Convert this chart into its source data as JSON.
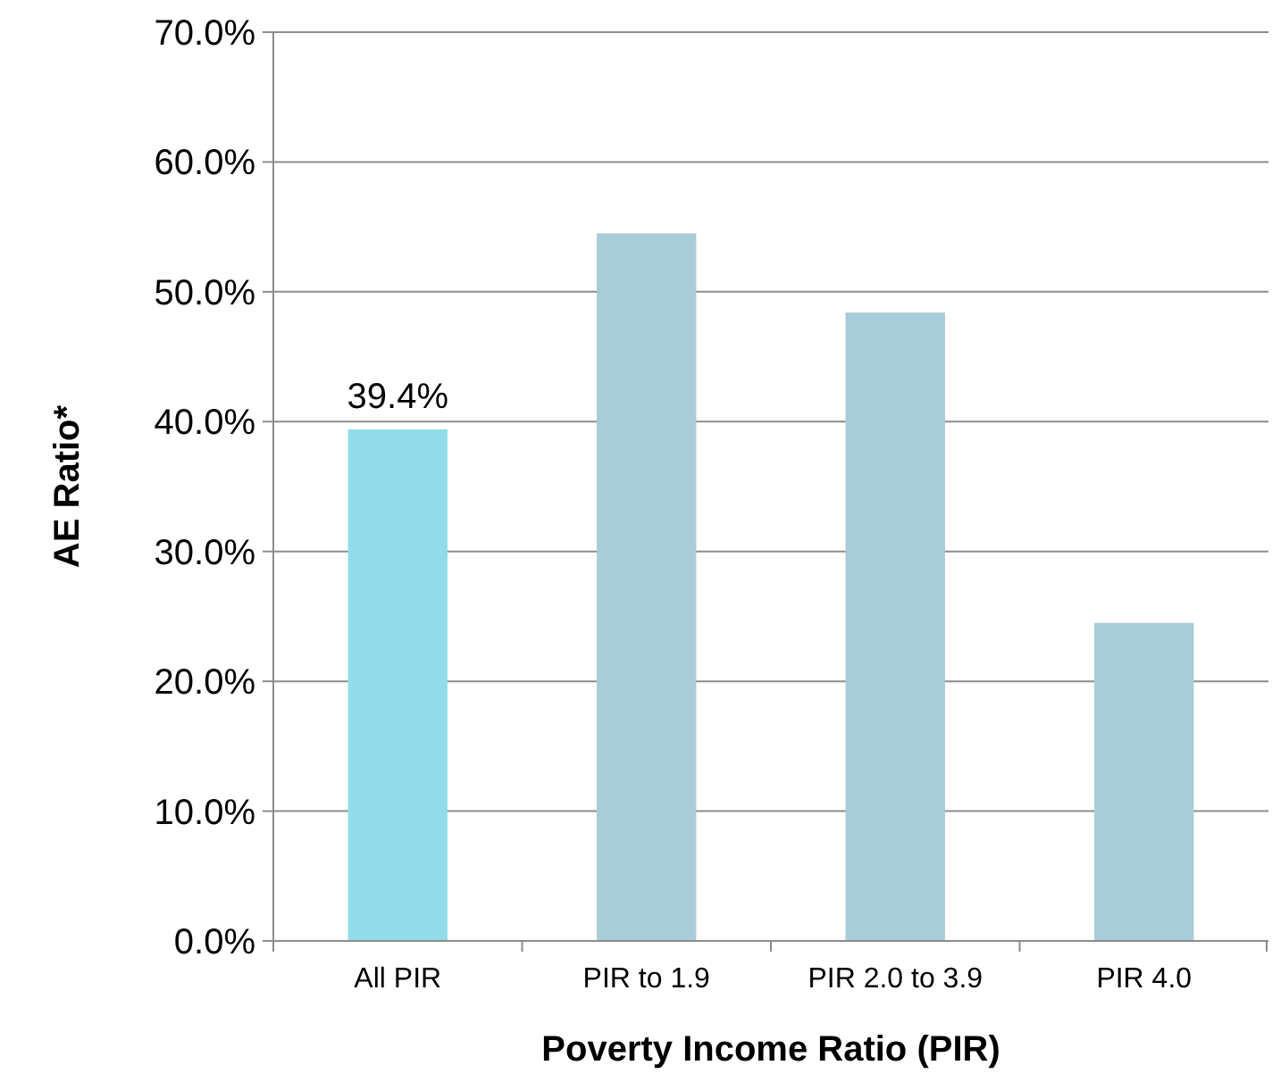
{
  "chart_data": {
    "type": "bar",
    "xlabel": "Poverty Income Ratio (PIR)",
    "ylabel": "AE Ratio*",
    "categories": [
      "All PIR",
      "PIR to 1.9",
      "PIR 2.0 to 3.9",
      "PIR 4.0"
    ],
    "values": [
      39.4,
      54.5,
      48.4,
      24.5
    ],
    "colors": [
      "#92dcea",
      "#a9cdd8",
      "#a9cdd8",
      "#a9cdd8"
    ],
    "value_labels": [
      "39.4%",
      null,
      null,
      null
    ],
    "ylim": [
      0,
      70
    ],
    "yticks": [
      {
        "value": 0,
        "label": "0.0%"
      },
      {
        "value": 10,
        "label": "10.0%"
      },
      {
        "value": 20,
        "label": "20.0%"
      },
      {
        "value": 30,
        "label": "30.0%"
      },
      {
        "value": 40,
        "label": "40.0%"
      },
      {
        "value": 50,
        "label": "50.0%"
      },
      {
        "value": 60,
        "label": "60.0%"
      },
      {
        "value": 70,
        "label": "70.0%"
      }
    ],
    "grid": "y"
  }
}
